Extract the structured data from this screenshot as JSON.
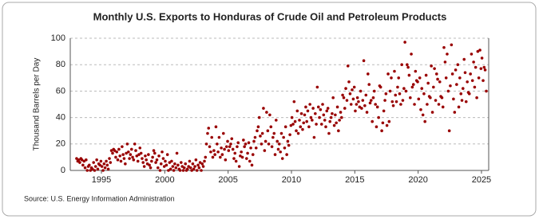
{
  "chart_data": {
    "type": "scatter",
    "title": "Monthly U.S. Exports to Honduras of Crude Oil and Petroleum Products",
    "y_label": "Thousand Barrels per Day",
    "source": "Source: U.S. Energy Information Administration",
    "xlim": [
      1992.54,
      2025.57
    ],
    "xticks": [
      1995,
      2000,
      2005,
      2010,
      2015,
      2020,
      2025
    ],
    "ylim": [
      0,
      100
    ],
    "yticks": [
      0,
      20,
      40,
      60,
      80,
      100
    ],
    "grid": true,
    "color": "#990000",
    "x": [
      1993.04,
      1993.13,
      1993.21,
      1993.29,
      1993.38,
      1993.46,
      1993.54,
      1993.63,
      1993.71,
      1993.79,
      1993.88,
      1993.96,
      1994.04,
      1994.13,
      1994.21,
      1994.29,
      1994.38,
      1994.46,
      1994.54,
      1994.63,
      1994.71,
      1994.79,
      1994.88,
      1994.96,
      1995.04,
      1995.13,
      1995.21,
      1995.29,
      1995.38,
      1995.46,
      1995.54,
      1995.63,
      1995.71,
      1995.79,
      1995.88,
      1995.96,
      1996.04,
      1996.13,
      1996.21,
      1996.29,
      1996.38,
      1996.46,
      1996.54,
      1996.63,
      1996.71,
      1996.79,
      1996.88,
      1996.96,
      1997.04,
      1997.13,
      1997.21,
      1997.29,
      1997.38,
      1997.46,
      1997.54,
      1997.63,
      1997.71,
      1997.79,
      1997.88,
      1997.96,
      1998.04,
      1998.13,
      1998.21,
      1998.29,
      1998.38,
      1998.46,
      1998.54,
      1998.63,
      1998.71,
      1998.79,
      1998.88,
      1998.96,
      1999.04,
      1999.13,
      1999.21,
      1999.29,
      1999.38,
      1999.46,
      1999.54,
      1999.63,
      1999.71,
      1999.79,
      1999.88,
      1999.96,
      2000.04,
      2000.13,
      2000.21,
      2000.29,
      2000.38,
      2000.46,
      2000.54,
      2000.63,
      2000.71,
      2000.79,
      2000.88,
      2000.96,
      2001.04,
      2001.13,
      2001.21,
      2001.29,
      2001.38,
      2001.46,
      2001.54,
      2001.63,
      2001.71,
      2001.79,
      2001.88,
      2001.96,
      2002.04,
      2002.13,
      2002.21,
      2002.29,
      2002.38,
      2002.46,
      2002.54,
      2002.63,
      2002.71,
      2002.79,
      2002.88,
      2002.96,
      2003.04,
      2003.13,
      2003.21,
      2003.29,
      2003.38,
      2003.46,
      2003.54,
      2003.63,
      2003.71,
      2003.79,
      2003.88,
      2003.96,
      2004.04,
      2004.13,
      2004.21,
      2004.29,
      2004.38,
      2004.46,
      2004.54,
      2004.63,
      2004.71,
      2004.79,
      2004.88,
      2004.96,
      2005.04,
      2005.13,
      2005.21,
      2005.29,
      2005.38,
      2005.46,
      2005.54,
      2005.63,
      2005.71,
      2005.79,
      2005.88,
      2005.96,
      2006.04,
      2006.13,
      2006.21,
      2006.29,
      2006.38,
      2006.46,
      2006.54,
      2006.63,
      2006.71,
      2006.79,
      2006.88,
      2006.96,
      2007.04,
      2007.13,
      2007.21,
      2007.29,
      2007.38,
      2007.46,
      2007.54,
      2007.63,
      2007.71,
      2007.79,
      2007.88,
      2007.96,
      2008.04,
      2008.13,
      2008.21,
      2008.29,
      2008.38,
      2008.46,
      2008.54,
      2008.63,
      2008.71,
      2008.79,
      2008.88,
      2008.96,
      2009.04,
      2009.13,
      2009.21,
      2009.29,
      2009.38,
      2009.46,
      2009.54,
      2009.63,
      2009.71,
      2009.79,
      2009.88,
      2009.96,
      2010.04,
      2010.13,
      2010.21,
      2010.29,
      2010.38,
      2010.46,
      2010.54,
      2010.63,
      2010.71,
      2010.79,
      2010.88,
      2010.96,
      2011.04,
      2011.13,
      2011.21,
      2011.29,
      2011.38,
      2011.46,
      2011.54,
      2011.63,
      2011.71,
      2011.79,
      2011.88,
      2011.96,
      2012.04,
      2012.13,
      2012.21,
      2012.29,
      2012.38,
      2012.46,
      2012.54,
      2012.63,
      2012.71,
      2012.79,
      2012.88,
      2012.96,
      2013.04,
      2013.13,
      2013.21,
      2013.29,
      2013.38,
      2013.46,
      2013.54,
      2013.63,
      2013.71,
      2013.79,
      2013.88,
      2013.96,
      2014.04,
      2014.13,
      2014.21,
      2014.29,
      2014.38,
      2014.46,
      2014.54,
      2014.63,
      2014.71,
      2014.79,
      2014.88,
      2014.96,
      2015.04,
      2015.13,
      2015.21,
      2015.29,
      2015.38,
      2015.46,
      2015.54,
      2015.63,
      2015.71,
      2015.79,
      2015.88,
      2015.96,
      2016.04,
      2016.13,
      2016.21,
      2016.29,
      2016.38,
      2016.46,
      2016.54,
      2016.63,
      2016.71,
      2016.79,
      2016.88,
      2016.96,
      2017.04,
      2017.13,
      2017.21,
      2017.29,
      2017.38,
      2017.46,
      2017.54,
      2017.63,
      2017.71,
      2017.79,
      2017.88,
      2017.96,
      2018.04,
      2018.13,
      2018.21,
      2018.29,
      2018.38,
      2018.46,
      2018.54,
      2018.63,
      2018.71,
      2018.79,
      2018.88,
      2018.96,
      2019.04,
      2019.13,
      2019.21,
      2019.29,
      2019.38,
      2019.46,
      2019.54,
      2019.63,
      2019.71,
      2019.79,
      2019.88,
      2019.96,
      2020.04,
      2020.13,
      2020.21,
      2020.29,
      2020.38,
      2020.46,
      2020.54,
      2020.63,
      2020.71,
      2020.79,
      2020.88,
      2020.96,
      2021.04,
      2021.13,
      2021.21,
      2021.29,
      2021.38,
      2021.46,
      2021.54,
      2021.63,
      2021.71,
      2021.79,
      2021.88,
      2021.96,
      2022.04,
      2022.13,
      2022.21,
      2022.29,
      2022.38,
      2022.46,
      2022.54,
      2022.63,
      2022.71,
      2022.79,
      2022.88,
      2022.96,
      2023.04,
      2023.13,
      2023.21,
      2023.29,
      2023.38,
      2023.46,
      2023.54,
      2023.63,
      2023.71,
      2023.79,
      2023.88,
      2023.96,
      2024.04,
      2024.13,
      2024.21,
      2024.29,
      2024.38,
      2024.46,
      2024.54,
      2024.63,
      2024.71,
      2024.79,
      2024.88,
      2024.96,
      2025.04,
      2025.13,
      2025.21,
      2025.29,
      2025.38
    ],
    "values": [
      9,
      7,
      8,
      6,
      9,
      8,
      4,
      7,
      2,
      8,
      0,
      3,
      4,
      0,
      2,
      1,
      6,
      0,
      3,
      8,
      1,
      5,
      4,
      7,
      3,
      0,
      5,
      2,
      7,
      4,
      1,
      9,
      6,
      15,
      13,
      16,
      15,
      10,
      14,
      8,
      16,
      11,
      7,
      18,
      12,
      9,
      5,
      13,
      20,
      14,
      9,
      12,
      16,
      10,
      8,
      20,
      15,
      11,
      7,
      12,
      17,
      13,
      9,
      6,
      3,
      11,
      8,
      5,
      12,
      4,
      2,
      7,
      10,
      15,
      13,
      6,
      8,
      2,
      11,
      0,
      5,
      14,
      9,
      3,
      7,
      4,
      12,
      0,
      6,
      1,
      7,
      3,
      0,
      5,
      2,
      13,
      4,
      1,
      0,
      6,
      3,
      0,
      2,
      5,
      0,
      1,
      3,
      7,
      2,
      0,
      5,
      1,
      3,
      8,
      0,
      4,
      2,
      6,
      0,
      5,
      3,
      7,
      10,
      20,
      28,
      32,
      18,
      14,
      25,
      10,
      15,
      12,
      33,
      20,
      14,
      25,
      10,
      17,
      12,
      28,
      16,
      8,
      18,
      22,
      15,
      18,
      20,
      24,
      16,
      9,
      13,
      7,
      18,
      21,
      3,
      11,
      14,
      10,
      23,
      18,
      20,
      9,
      13,
      21,
      7,
      17,
      4,
      12,
      22,
      25,
      17,
      30,
      33,
      40,
      26,
      20,
      28,
      47,
      15,
      22,
      44,
      30,
      20,
      42,
      33,
      18,
      25,
      28,
      12,
      38,
      22,
      16,
      20,
      14,
      28,
      9,
      25,
      17,
      33,
      12,
      22,
      19,
      27,
      34,
      40,
      35,
      52,
      37,
      30,
      45,
      28,
      38,
      33,
      43,
      31,
      36,
      42,
      48,
      37,
      45,
      33,
      50,
      40,
      38,
      47,
      25,
      43,
      35,
      63,
      48,
      40,
      46,
      35,
      50,
      42,
      38,
      33,
      45,
      47,
      28,
      37,
      40,
      43,
      55,
      34,
      42,
      36,
      48,
      30,
      38,
      44,
      40,
      57,
      55,
      47,
      62,
      53,
      79,
      67,
      58,
      50,
      61,
      54,
      63,
      45,
      50,
      55,
      52,
      48,
      60,
      47,
      53,
      83,
      49,
      57,
      44,
      73,
      65,
      51,
      53,
      37,
      55,
      60,
      50,
      33,
      48,
      40,
      64,
      63,
      30,
      36,
      45,
      53,
      58,
      34,
      73,
      37,
      60,
      70,
      52,
      49,
      75,
      57,
      52,
      63,
      70,
      58,
      50,
      80,
      53,
      62,
      97,
      60,
      80,
      78,
      72,
      55,
      88,
      63,
      65,
      50,
      75,
      68,
      67,
      54,
      70,
      46,
      62,
      42,
      58,
      37,
      72,
      50,
      66,
      56,
      55,
      79,
      44,
      63,
      77,
      53,
      73,
      69,
      50,
      67,
      56,
      55,
      48,
      93,
      82,
      70,
      88,
      60,
      30,
      64,
      95,
      73,
      54,
      44,
      76,
      65,
      80,
      48,
      70,
      58,
      53,
      62,
      84,
      74,
      52,
      67,
      59,
      58,
      73,
      88,
      68,
      82,
      63,
      78,
      55,
      90,
      70,
      91,
      77,
      85,
      68,
      78,
      76,
      60
    ]
  }
}
